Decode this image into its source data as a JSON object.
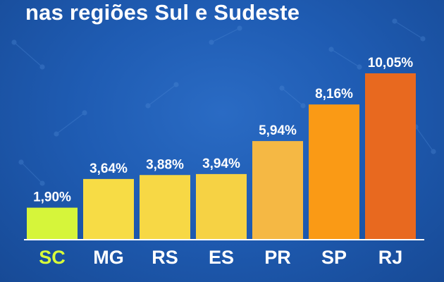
{
  "page": {
    "title": "nas regiões Sul e Sudeste"
  },
  "colors": {
    "background": "#1f5cb3",
    "text": "#ffffff",
    "highlight_label": "#d8ff3a"
  },
  "chart_data": {
    "type": "bar",
    "title": "nas regiões Sul e Sudeste",
    "categories": [
      "SC",
      "MG",
      "RS",
      "ES",
      "PR",
      "SP",
      "RJ"
    ],
    "values": [
      1.9,
      3.64,
      3.88,
      3.94,
      5.94,
      8.16,
      10.05
    ],
    "value_labels": [
      "1,90%",
      "3,64%",
      "3,88%",
      "3,94%",
      "5,94%",
      "8,16%",
      "10,05%"
    ],
    "bar_colors": [
      "#d6f53a",
      "#f7dc45",
      "#f7d845",
      "#f6d244",
      "#f5b844",
      "#fa9a15",
      "#e8691f"
    ],
    "category_label_colors": [
      "#d8ff3a",
      "#ffffff",
      "#ffffff",
      "#ffffff",
      "#ffffff",
      "#ffffff",
      "#ffffff"
    ],
    "ylim": [
      0,
      10.05
    ],
    "xlabel": "",
    "ylabel": "",
    "grid": false
  }
}
